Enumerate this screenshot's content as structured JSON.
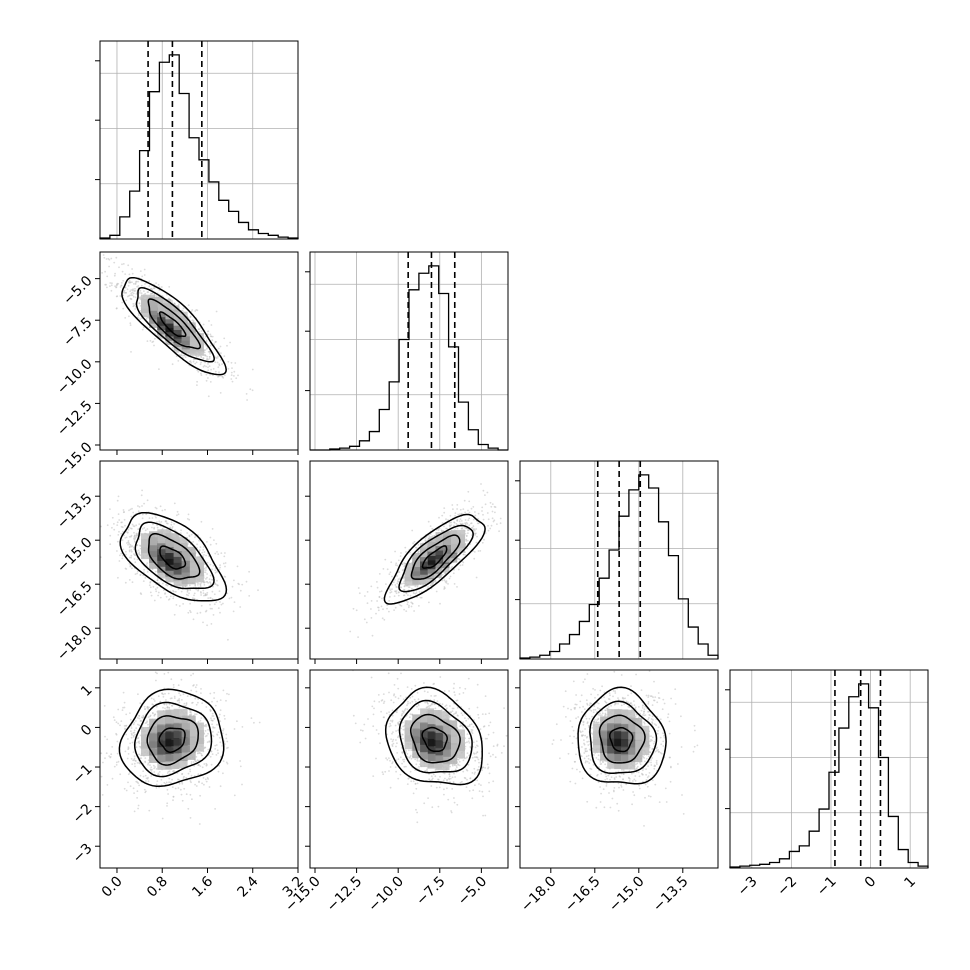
{
  "chart_data": {
    "type": "corner",
    "title": "",
    "grid": true,
    "parameters": [
      {
        "xlim": [
          -0.3,
          3.2
        ],
        "ticks": [
          "0.0",
          "0.8",
          "1.6",
          "2.4",
          "3.2"
        ],
        "quantiles": [
          0.55,
          0.98,
          1.5
        ],
        "histogram": {
          "bin_start": -0.3,
          "bin_width": 0.175,
          "counts": [
            0.5,
            2,
            12,
            26,
            48,
            80,
            96,
            100,
            79,
            55,
            43,
            31,
            21,
            15,
            9,
            5,
            3,
            2,
            1,
            0.5
          ]
        }
      },
      {
        "xlim": [
          -15.3,
          -3.4
        ],
        "ylim": [
          -15.3,
          -3.4
        ],
        "ticks": [
          "-15.0",
          "-12.5",
          "-10.0",
          "-7.5",
          "-5.0"
        ],
        "quantiles": [
          -9.4,
          -8.0,
          -6.6
        ],
        "histogram": {
          "bin_start": -15.3,
          "bin_width": 0.595,
          "counts": [
            0,
            0,
            0.5,
            1,
            2,
            5,
            10,
            22,
            37,
            60,
            87,
            96,
            100,
            85,
            56,
            26,
            11,
            3,
            1,
            0
          ]
        }
      },
      {
        "xlim": [
          -19.05,
          -12.3
        ],
        "ylim": [
          -19.05,
          -12.3
        ],
        "ticks": [
          "-18.0",
          "-16.5",
          "-15.0",
          "-13.5"
        ],
        "quantiles": [
          -16.4,
          -15.67,
          -14.95
        ],
        "histogram": {
          "bin_start": -19.05,
          "bin_width": 0.3375,
          "counts": [
            0.5,
            1,
            2,
            4,
            8,
            13,
            20,
            29,
            43,
            58,
            76,
            90,
            98,
            91,
            73,
            55,
            32,
            17,
            8,
            2
          ]
        }
      },
      {
        "xlim": [
          -3.55,
          1.45
        ],
        "ylim": [
          -3.55,
          1.45
        ],
        "ticks": [
          "-3",
          "-2",
          "-1",
          "0",
          "1"
        ],
        "quantiles": [
          -0.9,
          -0.25,
          0.25
        ],
        "histogram": {
          "bin_start": -3.55,
          "bin_width": 0.25,
          "counts": [
            0.5,
            1,
            1.5,
            2,
            3,
            5,
            9,
            12,
            20,
            32,
            52,
            76,
            93,
            100,
            87,
            60,
            28,
            10,
            3,
            1
          ]
        }
      }
    ],
    "scatter_2d": [
      {
        "row": 1,
        "col": 0,
        "mean": [
          0.98,
          -7.8
        ],
        "sigma": [
          0.45,
          1.45
        ],
        "rho": -0.83
      },
      {
        "row": 2,
        "col": 0,
        "mean": [
          0.98,
          -15.6
        ],
        "sigma": [
          0.45,
          0.75
        ],
        "rho": -0.55
      },
      {
        "row": 2,
        "col": 1,
        "mean": [
          -7.8,
          -15.6
        ],
        "sigma": [
          1.45,
          0.75
        ],
        "rho": 0.78
      },
      {
        "row": 3,
        "col": 0,
        "mean": [
          0.98,
          -0.3
        ],
        "sigma": [
          0.45,
          0.6
        ],
        "rho": 0.1
      },
      {
        "row": 3,
        "col": 1,
        "mean": [
          -7.8,
          -0.3
        ],
        "sigma": [
          1.45,
          0.6
        ],
        "rho": -0.2
      },
      {
        "row": 3,
        "col": 2,
        "mean": [
          -15.6,
          -0.3
        ],
        "sigma": [
          0.75,
          0.6
        ],
        "rho": -0.05
      }
    ],
    "contour_levels_sigma": [
      0.5,
      1.0,
      1.5,
      2.0
    ],
    "colors": {
      "line": "#000000",
      "grid": "#b0b0b0",
      "scatter": "#bdbdbd",
      "density_dark": "#101010",
      "density_light": "#f2f2f2"
    }
  }
}
